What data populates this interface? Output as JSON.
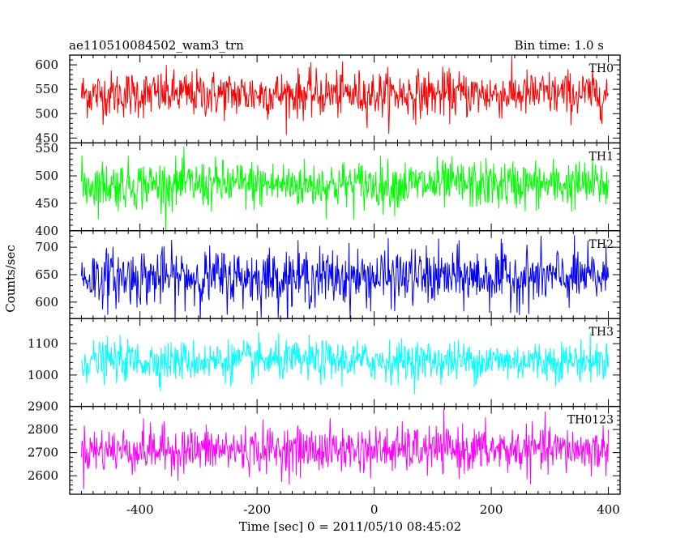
{
  "header": {
    "title_left": "ae110510084502_wam3_trn",
    "title_right": "Bin time: 1.0 s"
  },
  "axes": {
    "ylabel": "Counts/sec",
    "xlabel": "Time [sec] 0 = 2011/05/10 08:45:02"
  },
  "chart_data": {
    "type": "line",
    "title": "ae110510084502_wam3_trn",
    "subtitle": "Bin time: 1.0 s",
    "xlabel": "Time [sec] 0 = 2011/05/10 08:45:02",
    "ylabel": "Counts/sec",
    "xlim": [
      -520,
      420
    ],
    "x_ticks": [
      -400,
      -200,
      0,
      200,
      400
    ],
    "x_data_range": [
      -500,
      400
    ],
    "bin_time_s": 1.0,
    "grid": false,
    "legend": "none",
    "panels": [
      {
        "name": "TH0",
        "color": "#ff0000",
        "ylim": [
          440,
          620
        ],
        "y_ticks": [
          450,
          500,
          550,
          600
        ],
        "mean": 540,
        "spread": 24
      },
      {
        "name": "TH1",
        "color": "#00ff00",
        "ylim": [
          400,
          560
        ],
        "y_ticks": [
          400,
          450,
          500,
          550
        ],
        "mean": 484,
        "spread": 22
      },
      {
        "name": "TH2",
        "color": "#0000ff",
        "ylim": [
          570,
          730
        ],
        "y_ticks": [
          600,
          650,
          700
        ],
        "mean": 645,
        "spread": 26
      },
      {
        "name": "TH3",
        "color": "#00ffff",
        "ylim": [
          900,
          1180
        ],
        "y_ticks": [
          1000,
          1100
        ],
        "mean": 1045,
        "spread": 32
      },
      {
        "name": "TH0123",
        "color": "#ff00ff",
        "ylim": [
          2520,
          2900
        ],
        "y_ticks": [
          2600,
          2700,
          2800,
          2900
        ],
        "mean": 2712,
        "spread": 50
      }
    ]
  }
}
